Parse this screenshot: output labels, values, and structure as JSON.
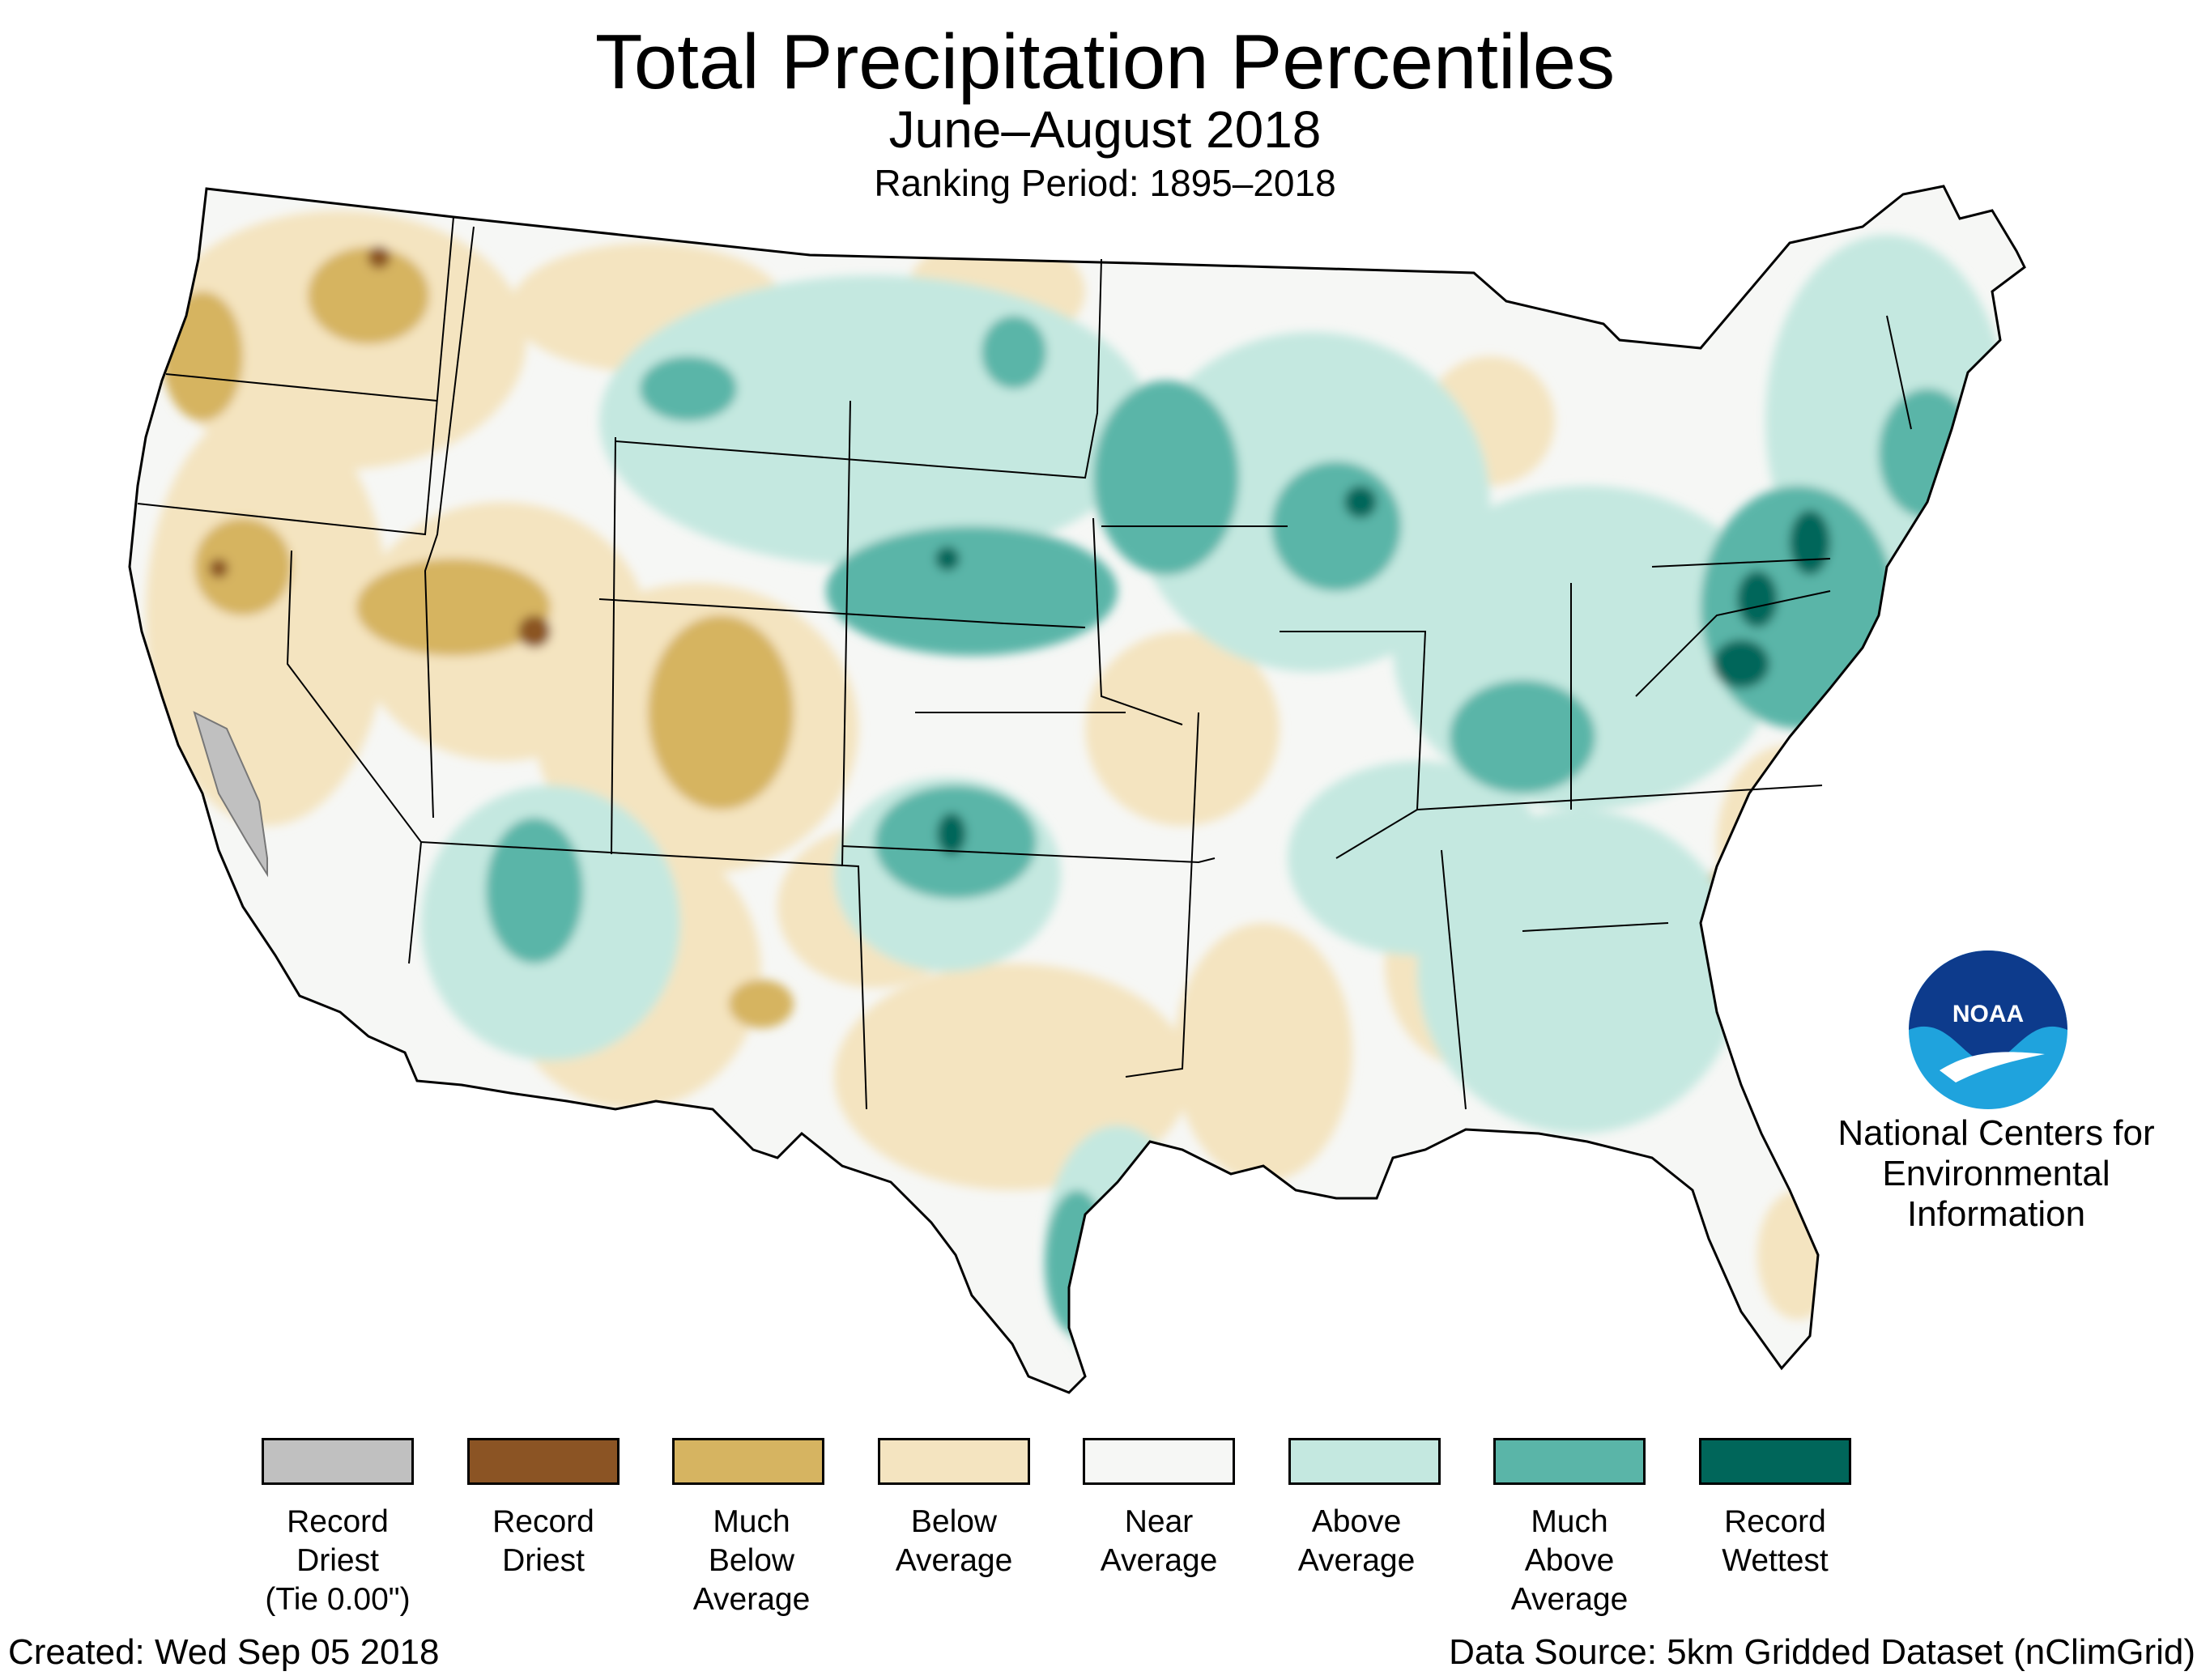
{
  "title": "Total Precipitation Percentiles",
  "subtitle": "June–August 2018",
  "ranking_period": "Ranking Period: 1895–2018",
  "organization": {
    "logo_text": "NOAA",
    "lines": [
      "National Centers for",
      "Environmental",
      "Information"
    ]
  },
  "legend": [
    {
      "lines": [
        "Record",
        "Driest",
        "(Tie 0.00\")"
      ],
      "color": "#c0c0c0"
    },
    {
      "lines": [
        "Record",
        "Driest"
      ],
      "color": "#8b5424"
    },
    {
      "lines": [
        "Much",
        "Below",
        "Average"
      ],
      "color": "#d6b461"
    },
    {
      "lines": [
        "Below",
        "Average"
      ],
      "color": "#f4e4c0"
    },
    {
      "lines": [
        "Near",
        "Average"
      ],
      "color": "#f6f7f5"
    },
    {
      "lines": [
        "Above",
        "Average"
      ],
      "color": "#c4e8e0"
    },
    {
      "lines": [
        "Much",
        "Above",
        "Average"
      ],
      "color": "#5ab5a8"
    },
    {
      "lines": [
        "Record",
        "Wettest"
      ],
      "color": "#00665a"
    }
  ],
  "footer": {
    "created": "Created: Wed Sep 05 2018",
    "source": "Data Source: 5km Gridded Dataset (nClimGrid)"
  }
}
